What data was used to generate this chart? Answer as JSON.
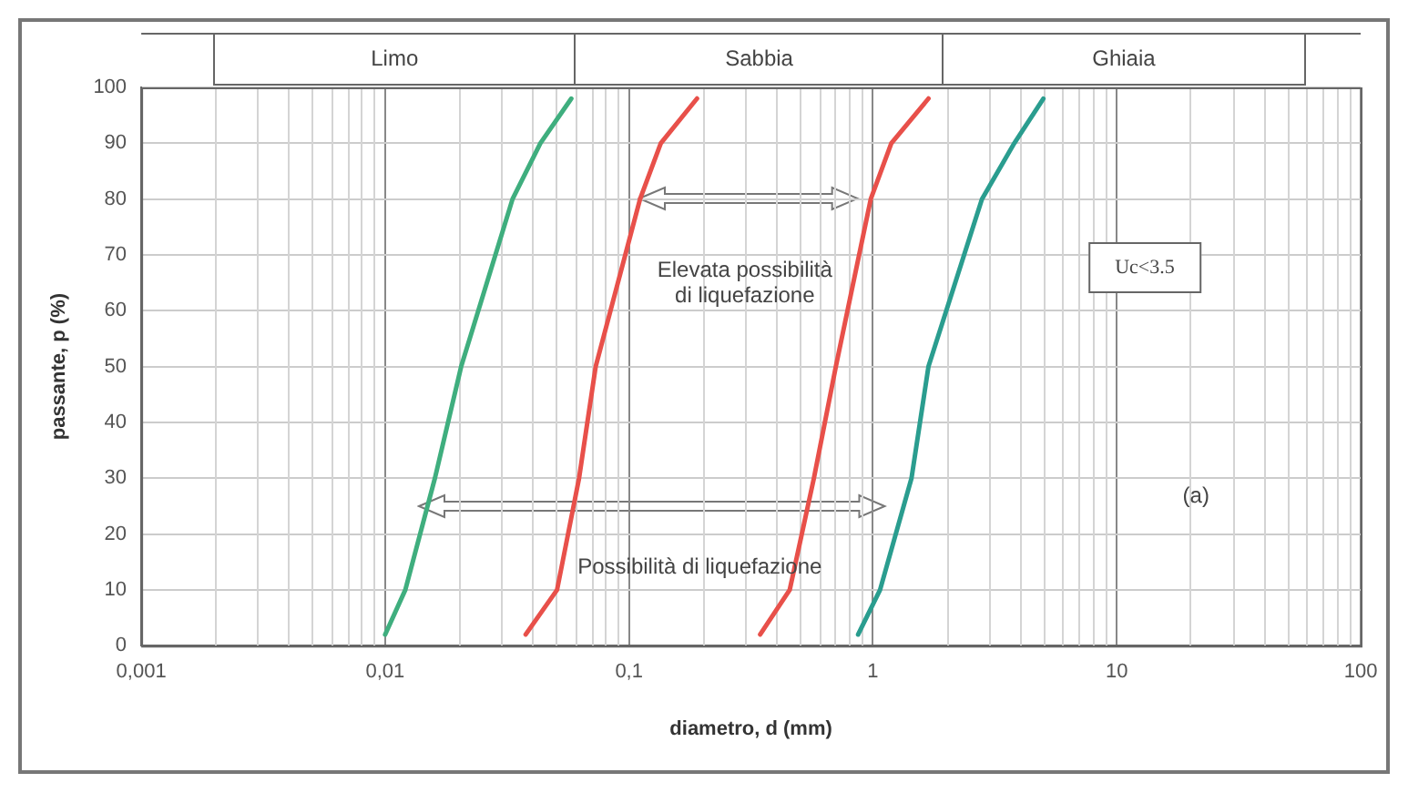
{
  "chart_data": {
    "type": "line",
    "xlabel": "diametro, d (mm)",
    "ylabel": "passante, p (%)",
    "log": "x",
    "grid": true,
    "line_style": "solid",
    "xlim": [
      0.001,
      100
    ],
    "xticks": [
      {
        "value": 0.001,
        "label": "0,001"
      },
      {
        "value": 0.01,
        "label": "0,01"
      },
      {
        "value": 0.1,
        "label": "0,1"
      },
      1,
      10,
      100
    ],
    "ylim": [
      0,
      100
    ],
    "yticks": [
      0,
      10,
      20,
      30,
      40,
      50,
      60,
      70,
      80,
      90,
      100
    ],
    "annotations": [
      "Elevata possibilità di liquefazione",
      "Possibilità di liquefazione",
      "Uc<3.5",
      "(a)",
      "Limo",
      "Sabbia",
      "Ghiaia"
    ],
    "series": [
      {
        "color": "#3fae7e",
        "x": [
          0.01,
          0.0121,
          0.016,
          0.0205,
          0.0333,
          0.0433,
          0.058
        ],
        "values": [
          2,
          10,
          30,
          50,
          80,
          90,
          98
        ]
      },
      {
        "color": "#e8504a",
        "x": [
          0.0377,
          0.0507,
          0.0624,
          0.073,
          0.111,
          0.135,
          0.19
        ],
        "values": [
          2,
          10,
          30,
          50,
          80,
          90,
          98
        ]
      },
      {
        "color": "#e8504a",
        "x": [
          0.345,
          0.456,
          0.573,
          0.705,
          0.98,
          1.19,
          1.69
        ],
        "values": [
          2,
          10,
          30,
          50,
          80,
          90,
          98
        ]
      },
      {
        "color": "#2a9d8f",
        "x": [
          0.87,
          1.07,
          1.44,
          1.69,
          2.8,
          3.8,
          5.0
        ],
        "values": [
          2,
          10,
          30,
          50,
          80,
          90,
          98
        ]
      }
    ]
  }
}
